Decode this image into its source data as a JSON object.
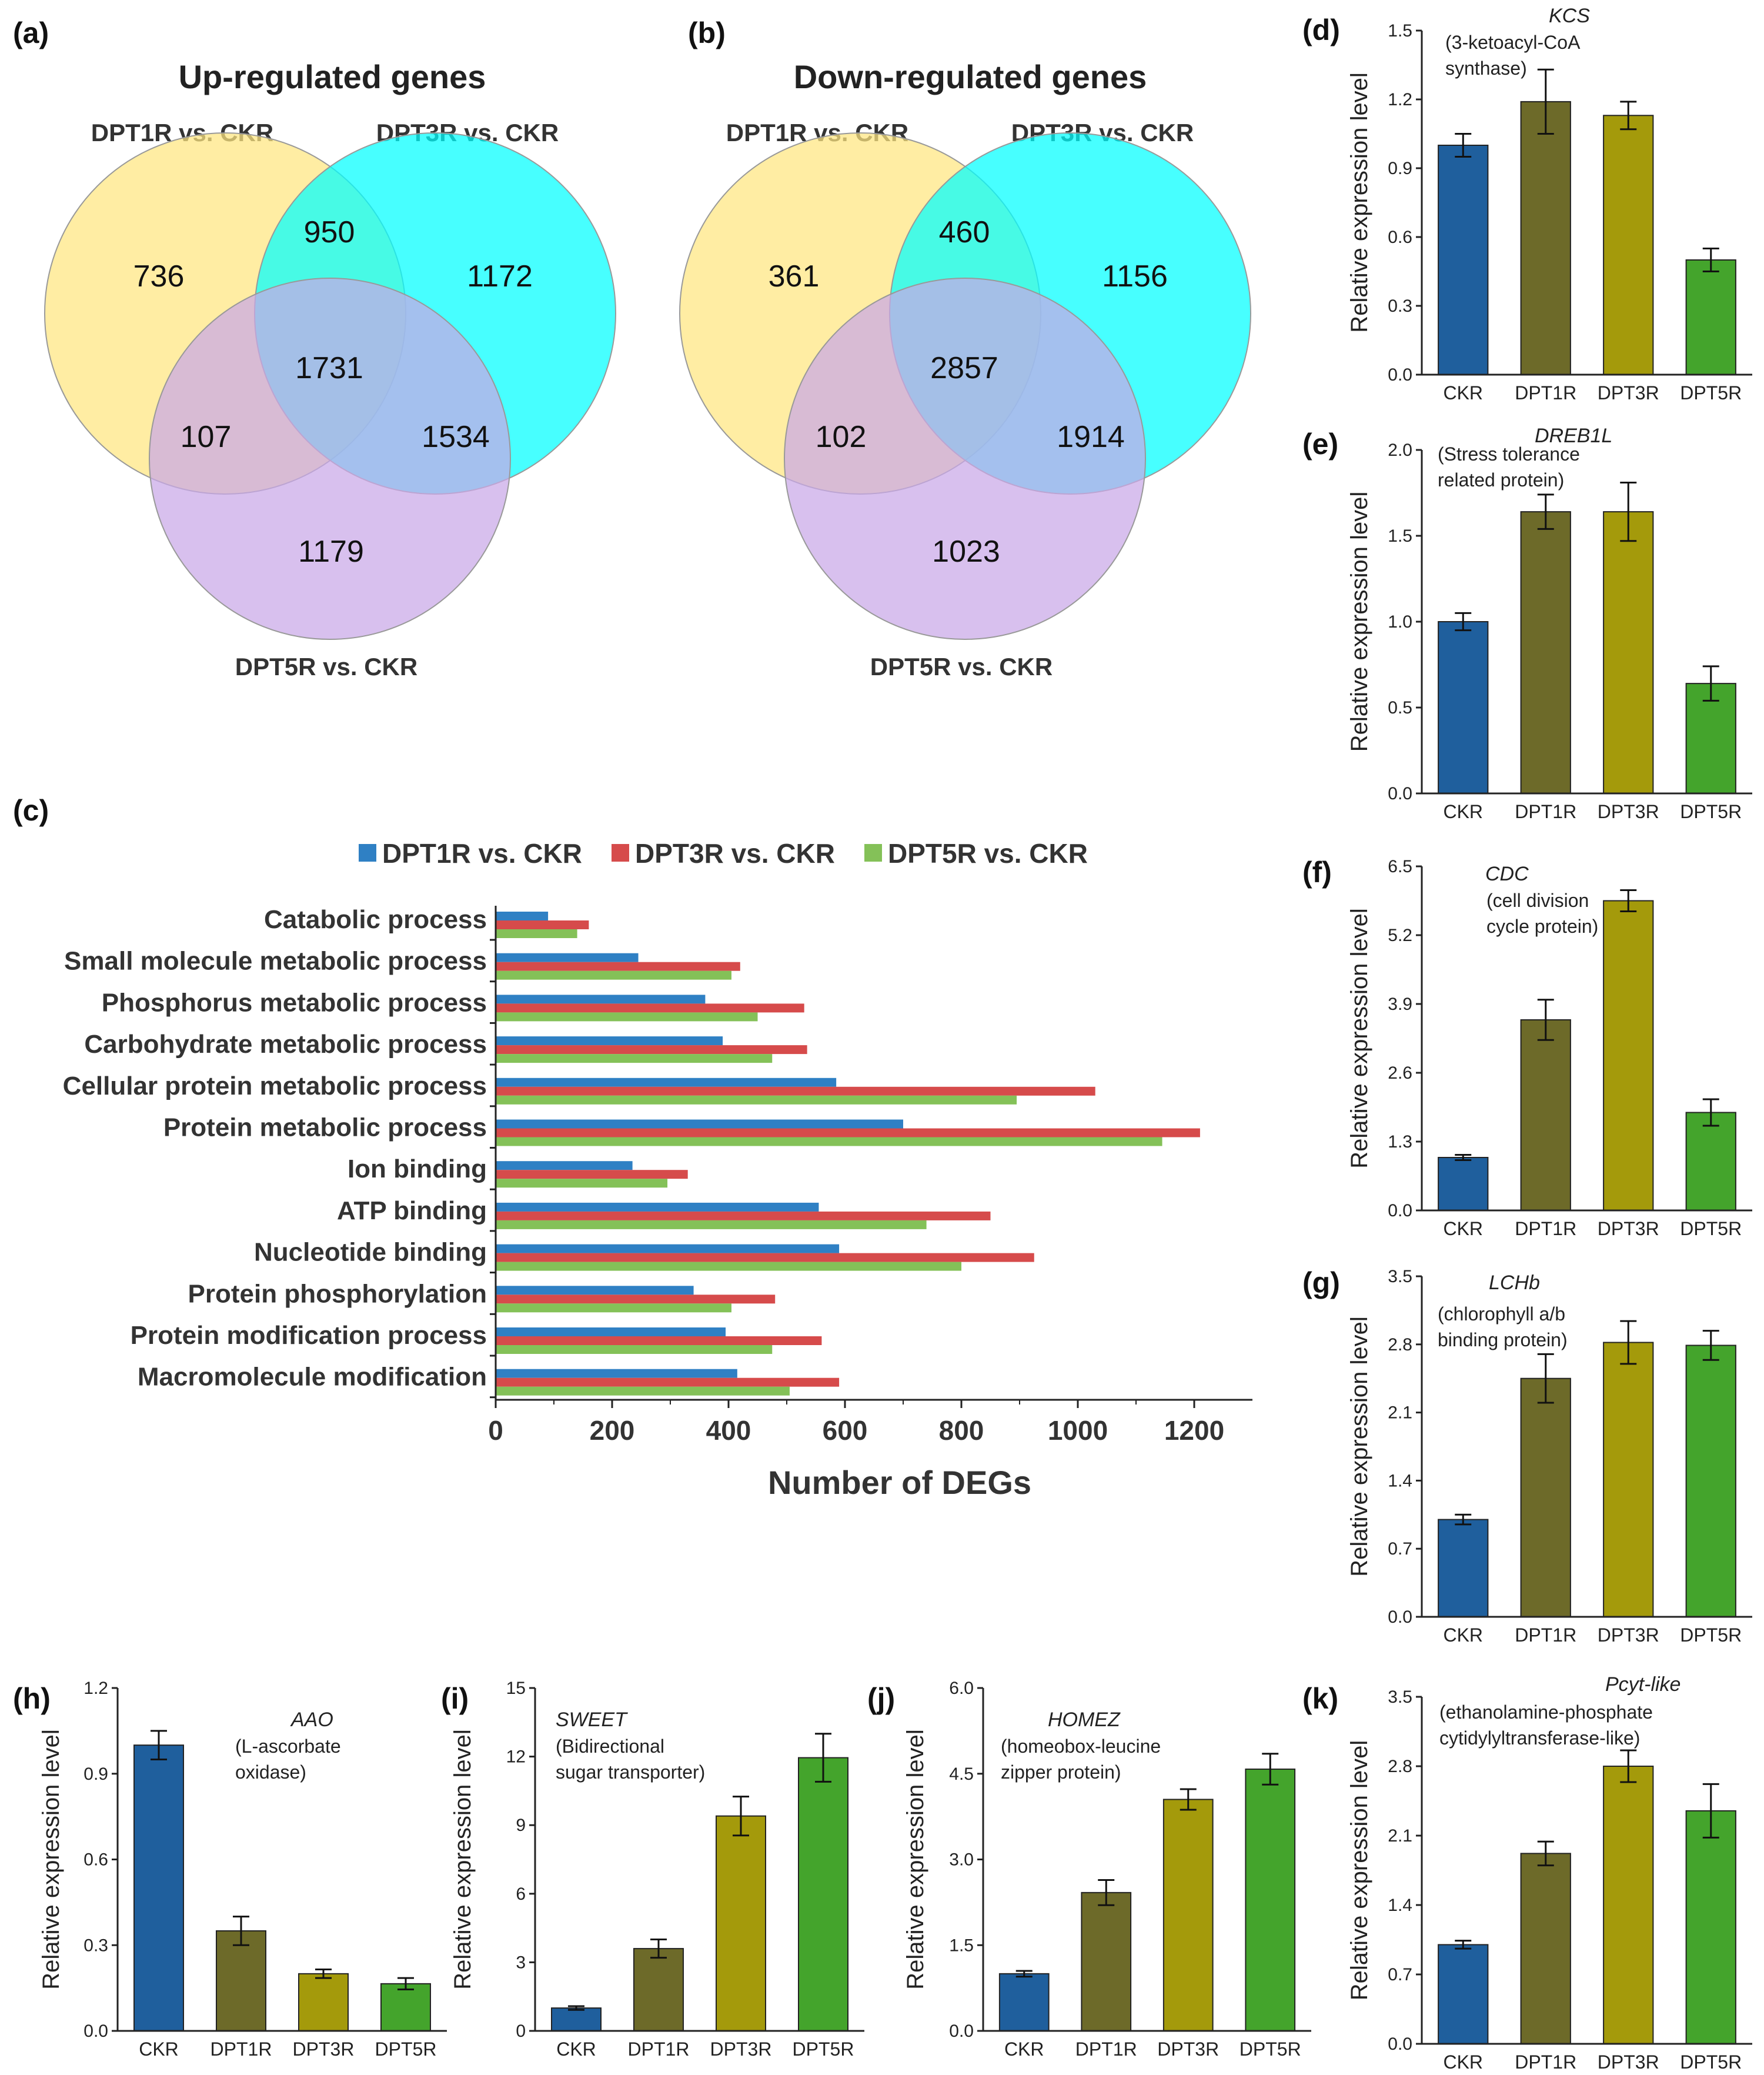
{
  "figure": {
    "colors": {
      "ckr": "#1f5f9d",
      "dpt1r": "#6d6a29",
      "dpt3r": "#a49a0b",
      "dpt5r": "#44a42c",
      "hbar_blue": "#2f80c4",
      "hbar_red": "#d64b4b",
      "hbar_green": "#84c158",
      "venn_yellow": "#ffe680",
      "venn_cyan": "#00ffff",
      "venn_purple": "#c9a8e8"
    }
  },
  "venns": [
    {
      "panel_label": "(a)",
      "title": "Up-regulated genes",
      "set_labels": {
        "a": "DPT1R vs. CKR",
        "b": "DPT3R vs. CKR",
        "c": "DPT5R vs. CKR"
      },
      "regions": {
        "a_only": "736",
        "ab": "950",
        "b_only": "1172",
        "abc": "1731",
        "ac": "107",
        "bc": "1534",
        "c_only": "1179"
      }
    },
    {
      "panel_label": "(b)",
      "title": "Down-regulated genes",
      "set_labels": {
        "a": "DPT1R vs. CKR",
        "b": "DPT3R vs. CKR",
        "c": "DPT5R vs. CKR"
      },
      "regions": {
        "a_only": "361",
        "ab": "460",
        "b_only": "1156",
        "abc": "2857",
        "ac": "102",
        "bc": "1914",
        "c_only": "1023"
      }
    }
  ],
  "chart_data": [
    {
      "panel_label": "(c)",
      "type": "bar",
      "orientation": "horizontal",
      "xlabel": "Number of DEGs",
      "xlim": [
        0,
        1300
      ],
      "xticks": [
        0,
        200,
        400,
        600,
        800,
        1000,
        1200
      ],
      "legend_position": "top",
      "categories": [
        "Catabolic process",
        "Small molecule metabolic process",
        "Phosphorus metabolic process",
        "Carbohydrate metabolic process",
        "Cellular protein metabolic process",
        "Protein metabolic process",
        "Ion binding",
        "ATP binding",
        "Nucleotide binding",
        "Protein phosphorylation",
        "Protein modification process",
        "Macromolecule modification"
      ],
      "series": [
        {
          "name": "DPT1R vs. CKR",
          "color": "#2f80c4",
          "values": [
            90,
            245,
            360,
            390,
            585,
            700,
            235,
            555,
            590,
            340,
            395,
            415
          ]
        },
        {
          "name": "DPT3R vs. CKR",
          "color": "#d64b4b",
          "values": [
            160,
            420,
            530,
            535,
            1030,
            1210,
            330,
            850,
            925,
            480,
            560,
            590
          ]
        },
        {
          "name": "DPT5R vs. CKR",
          "color": "#84c158",
          "values": [
            140,
            405,
            450,
            475,
            895,
            1145,
            295,
            740,
            800,
            405,
            475,
            505
          ]
        }
      ]
    },
    {
      "panel_label": "(d)",
      "type": "bar",
      "gene": "KCS",
      "annotation": [
        "(3-ketoacyl-CoA",
        "synthase)"
      ],
      "ylabel": "Relative expression level",
      "ylim": [
        0,
        1.5
      ],
      "yticks": [
        "0.0",
        "0.3",
        "0.6",
        "0.9",
        "1.2",
        "1.5"
      ],
      "categories": [
        "CKR",
        "DPT1R",
        "DPT3R",
        "DPT5R"
      ],
      "values": [
        1.0,
        1.19,
        1.13,
        0.5
      ],
      "errors": [
        0.05,
        0.14,
        0.06,
        0.05
      ]
    },
    {
      "panel_label": "(e)",
      "type": "bar",
      "gene": "DREB1L",
      "annotation": [
        "(Stress tolerance",
        "related protein)"
      ],
      "ylabel": "Relative expression level",
      "ylim": [
        0,
        2.0
      ],
      "yticks": [
        "0.0",
        "0.5",
        "1.0",
        "1.5",
        "2.0"
      ],
      "categories": [
        "CKR",
        "DPT1R",
        "DPT3R",
        "DPT5R"
      ],
      "values": [
        1.0,
        1.64,
        1.64,
        0.64
      ],
      "errors": [
        0.05,
        0.1,
        0.17,
        0.1
      ]
    },
    {
      "panel_label": "(f)",
      "type": "bar",
      "gene": "CDC",
      "annotation": [
        "(cell division",
        "cycle protein)"
      ],
      "ylabel": "Relative expression level",
      "ylim": [
        0,
        6.5
      ],
      "yticks": [
        "0.0",
        "1.3",
        "2.6",
        "3.9",
        "5.2",
        "6.5"
      ],
      "categories": [
        "CKR",
        "DPT1R",
        "DPT3R",
        "DPT5R"
      ],
      "values": [
        1.0,
        3.6,
        5.85,
        1.85
      ],
      "errors": [
        0.05,
        0.38,
        0.2,
        0.25
      ]
    },
    {
      "panel_label": "(g)",
      "type": "bar",
      "gene": "LCHb",
      "annotation": [
        "(chlorophyll a/b",
        "binding protein)"
      ],
      "ylabel": "Relative expression level",
      "ylim": [
        0,
        3.5
      ],
      "yticks": [
        "0.0",
        "0.7",
        "1.4",
        "2.1",
        "2.8",
        "3.5"
      ],
      "categories": [
        "CKR",
        "DPT1R",
        "DPT3R",
        "DPT5R"
      ],
      "values": [
        1.0,
        2.45,
        2.82,
        2.79
      ],
      "errors": [
        0.05,
        0.25,
        0.22,
        0.15
      ]
    },
    {
      "panel_label": "(h)",
      "type": "bar",
      "gene": "AAO",
      "annotation": [
        "(L-ascorbate",
        "oxidase)"
      ],
      "ylabel": "Relative expression level",
      "ylim": [
        0,
        1.2
      ],
      "yticks": [
        "0.0",
        "0.3",
        "0.6",
        "0.9",
        "1.2"
      ],
      "categories": [
        "CKR",
        "DPT1R",
        "DPT3R",
        "DPT5R"
      ],
      "values": [
        1.0,
        0.35,
        0.2,
        0.165
      ],
      "errors": [
        0.05,
        0.05,
        0.015,
        0.02
      ]
    },
    {
      "panel_label": "(i)",
      "type": "bar",
      "gene": "SWEET",
      "annotation": [
        "(Bidirectional",
        "sugar transporter)"
      ],
      "ylabel": "Relative expression level",
      "ylim": [
        0,
        15
      ],
      "yticks": [
        "0",
        "3",
        "6",
        "9",
        "12",
        "15"
      ],
      "categories": [
        "CKR",
        "DPT1R",
        "DPT3R",
        "DPT5R"
      ],
      "values": [
        1.0,
        3.6,
        9.4,
        11.95
      ],
      "errors": [
        0.08,
        0.4,
        0.85,
        1.05
      ]
    },
    {
      "panel_label": "(j)",
      "type": "bar",
      "gene": "HOMEZ",
      "annotation": [
        "(homeobox-leucine",
        "zipper protein)"
      ],
      "ylabel": "Relative expression level",
      "ylim": [
        0,
        6.0
      ],
      "yticks": [
        "0.0",
        "1.5",
        "3.0",
        "4.5",
        "6.0"
      ],
      "categories": [
        "CKR",
        "DPT1R",
        "DPT3R",
        "DPT5R"
      ],
      "values": [
        1.0,
        2.42,
        4.05,
        4.58
      ],
      "errors": [
        0.05,
        0.22,
        0.18,
        0.27
      ]
    },
    {
      "panel_label": "(k)",
      "type": "bar",
      "gene": "Pcyt-like",
      "annotation": [
        "(ethanolamine-phosphate",
        "cytidylyltransferase-like)"
      ],
      "ylabel": "Relative expression level",
      "ylim": [
        0,
        3.5
      ],
      "yticks": [
        "0.0",
        "0.7",
        "1.4",
        "2.1",
        "2.8",
        "3.5"
      ],
      "categories": [
        "CKR",
        "DPT1R",
        "DPT3R",
        "DPT5R"
      ],
      "values": [
        1.0,
        1.92,
        2.8,
        2.35
      ],
      "errors": [
        0.04,
        0.12,
        0.16,
        0.27
      ]
    }
  ]
}
